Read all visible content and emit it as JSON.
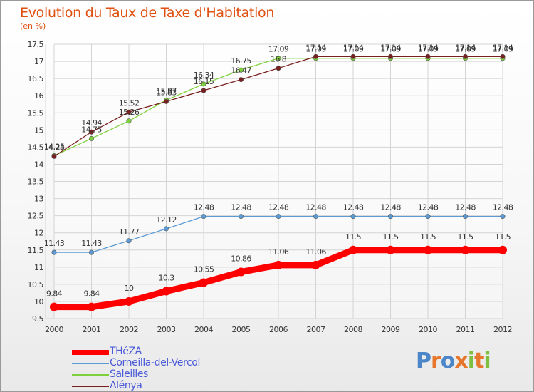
{
  "title": "Evolution du Taux de Taxe d'Habitation",
  "unit_label": "(en %)",
  "chart_data": {
    "type": "line",
    "title": "Evolution du Taux de Taxe d'Habitation",
    "ylabel": "(en %)",
    "xlabel": "",
    "ylim": [
      9.5,
      17.5
    ],
    "yticks": [
      "9.5",
      "10",
      "10.5",
      "11",
      "11.5",
      "12",
      "12.5",
      "13",
      "13.5",
      "14",
      "14.5",
      "15",
      "15.5",
      "16",
      "16.5",
      "17",
      "17.5"
    ],
    "x": [
      "2000",
      "2001",
      "2002",
      "2003",
      "2004",
      "2005",
      "2006",
      "2007",
      "2008",
      "2009",
      "2010",
      "2011",
      "2012"
    ],
    "series": [
      {
        "name": "THéZA",
        "color": "#ff0000",
        "width": 9,
        "values": [
          9.84,
          9.84,
          10,
          10.3,
          10.55,
          10.86,
          11.06,
          11.06,
          11.5,
          11.5,
          11.5,
          11.5,
          11.5
        ],
        "labels": [
          "9.84",
          "9.84",
          "10",
          "10.3",
          "10.55",
          "10.86",
          "11.06",
          "11.06",
          "11.5",
          "11.5",
          "11.5",
          "11.5",
          "11.5"
        ]
      },
      {
        "name": "Corneilla-del-Vercol",
        "color": "#5b9bd5",
        "width": 1.3,
        "values": [
          11.43,
          11.43,
          11.77,
          12.12,
          12.48,
          12.48,
          12.48,
          12.48,
          12.48,
          12.48,
          12.48,
          12.48,
          12.48
        ],
        "labels": [
          "11.43",
          "11.43",
          "11.77",
          "12.12",
          "12.48",
          "12.48",
          "12.48",
          "12.48",
          "12.48",
          "12.48",
          "12.48",
          "12.48",
          "12.48"
        ]
      },
      {
        "name": "Saleilles",
        "color": "#7fd13b",
        "width": 1.3,
        "values": [
          14.25,
          14.75,
          15.26,
          15.87,
          16.34,
          16.75,
          17.09,
          17.09,
          17.09,
          17.09,
          17.09,
          17.09,
          17.09
        ],
        "labels": [
          "14.25",
          "14.75",
          "15.26",
          "15.87",
          "16.34",
          "16.75",
          "17.09",
          "17.09",
          "17.09",
          "17.09",
          "17.09",
          "17.09",
          "17.09"
        ]
      },
      {
        "name": "Alénya",
        "color": "#7a1f1f",
        "width": 1.3,
        "values": [
          14.23,
          14.94,
          15.52,
          15.83,
          16.15,
          16.47,
          16.8,
          17.14,
          17.14,
          17.14,
          17.14,
          17.14,
          17.14
        ],
        "labels": [
          "14.23",
          "14.94",
          "15.52",
          "15.83",
          "16.15",
          "16.47",
          "16.8",
          "17.14",
          "17.14",
          "17.14",
          "17.14",
          "17.14",
          "17.14"
        ]
      }
    ]
  },
  "legend": [
    {
      "label": "THéZA",
      "color": "#ff0000",
      "thickness": 7
    },
    {
      "label": "Corneilla-del-Vercol",
      "color": "#5b9bd5",
      "thickness": 2
    },
    {
      "label": "Saleilles",
      "color": "#7fd13b",
      "thickness": 2
    },
    {
      "label": "Alénya",
      "color": "#7a1f1f",
      "thickness": 2
    }
  ],
  "logo": {
    "text": "Proxiti",
    "letters": [
      "P",
      "r",
      "o",
      "x",
      "i",
      "t",
      "i"
    ],
    "colors": [
      "#4a86c8",
      "#e8772e",
      "#4a86c8",
      "#e8772e",
      "#7fbf3f",
      "#e8772e",
      "#7fbf3f"
    ]
  }
}
